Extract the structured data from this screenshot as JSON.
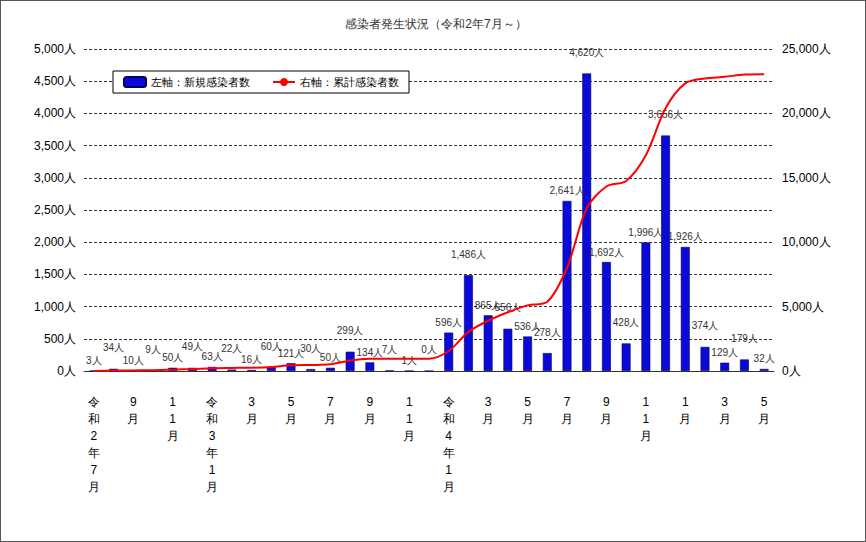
{
  "chart_data": {
    "type": "bar",
    "title": "感染者発生状況（令和2年7月～）",
    "categories": [
      "令和2年7月",
      null,
      "9月",
      null,
      "11月",
      null,
      "令和3年1月",
      null,
      "3月",
      null,
      "5月",
      null,
      "7月",
      null,
      "9月",
      null,
      "11月",
      null,
      "令和4年1月",
      null,
      "3月",
      null,
      "5月",
      null,
      "7月",
      null,
      "9月",
      null,
      "11月",
      null,
      "1月",
      null,
      "3月",
      null,
      "5月"
    ],
    "series": [
      {
        "name": "左軸：新規感染者数",
        "type": "bar",
        "color": "#0a0ad8",
        "values": [
          3,
          34,
          10,
          9,
          50,
          49,
          63,
          22,
          16,
          60,
          121,
          30,
          50,
          299,
          134,
          7,
          1,
          0,
          596,
          1486,
          865,
          656,
          536,
          278,
          2641,
          4620,
          1692,
          428,
          1996,
          3656,
          1926,
          374,
          129,
          179,
          32
        ],
        "value_labels": [
          "3人",
          "34人",
          "10人",
          "9人",
          "50人",
          "49人",
          "63人",
          "22人",
          "16人",
          "60人",
          "121人",
          "30人",
          "50人",
          "299人",
          "134人",
          "7人",
          "1人",
          "0人",
          "596人",
          "1,486人",
          "865人",
          "656人",
          "536人",
          "278人",
          "2,641人",
          "4,620人",
          "1,692人",
          "428人",
          "1,996人",
          "3,656人",
          "1,926人",
          "374人",
          "129人",
          "179人",
          "32人"
        ]
      },
      {
        "name": "右軸：累計感染者数",
        "type": "line",
        "color": "#ff0000",
        "axis": "y2",
        "line_style": "solid",
        "marker": "none",
        "values": [
          3,
          37,
          47,
          56,
          106,
          155,
          218,
          240,
          256,
          316,
          437,
          467,
          517,
          816,
          950,
          957,
          958,
          958,
          1554,
          3040,
          3905,
          4561,
          5097,
          5375,
          8016,
          12636,
          14328,
          14756,
          16752,
          20408,
          22334,
          22708,
          22837,
          23016,
          23048
        ]
      }
    ],
    "ylim": [
      0,
      5000
    ],
    "yticks": [
      {
        "value": 0,
        "label": "0人"
      },
      {
        "value": 500,
        "label": "500人"
      },
      {
        "value": 1000,
        "label": "1,000人"
      },
      {
        "value": 1500,
        "label": "1,500人"
      },
      {
        "value": 2000,
        "label": "2,000人"
      },
      {
        "value": 2500,
        "label": "2,500人"
      },
      {
        "value": 3000,
        "label": "3,000人"
      },
      {
        "value": 3500,
        "label": "3,500人"
      },
      {
        "value": 4000,
        "label": "4,000人"
      },
      {
        "value": 4500,
        "label": "4,500人"
      },
      {
        "value": 5000,
        "label": "5,000人"
      }
    ],
    "y2lim": [
      0,
      25000
    ],
    "y2ticks": [
      {
        "value": 0,
        "label": "0人"
      },
      {
        "value": 5000,
        "label": "5,000人"
      },
      {
        "value": 10000,
        "label": "10,000人"
      },
      {
        "value": 15000,
        "label": "15,000人"
      },
      {
        "value": 20000,
        "label": "20,000人"
      },
      {
        "value": 25000,
        "label": "25,000人"
      }
    ],
    "grid": true,
    "legend": "upper left",
    "data_labels": true
  }
}
